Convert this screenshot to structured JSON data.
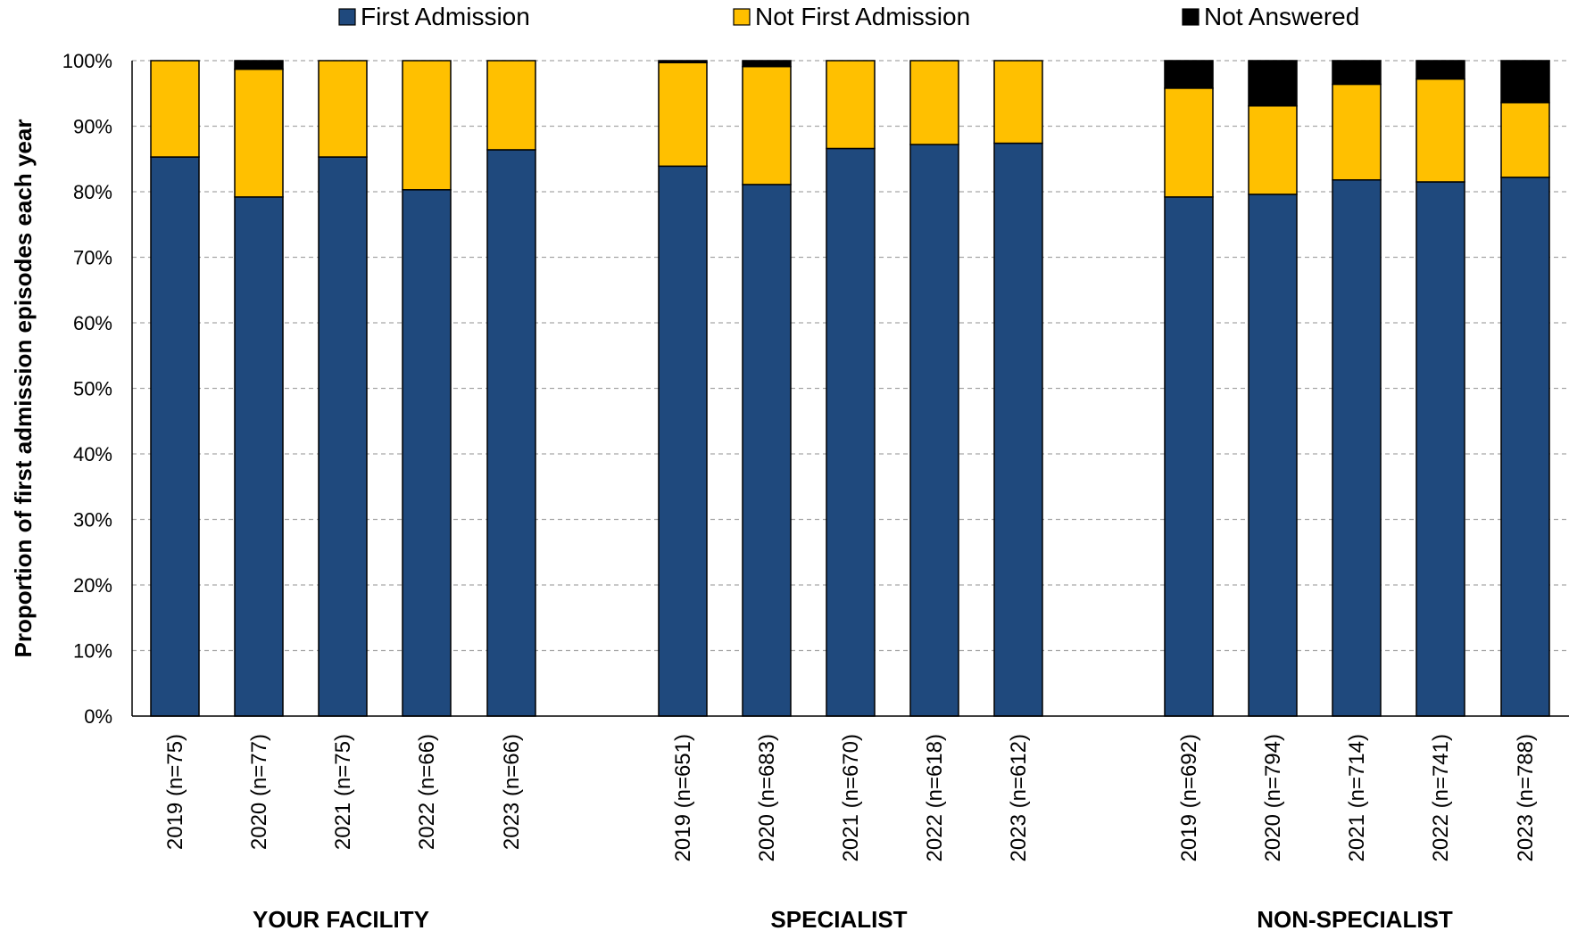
{
  "chart_data": {
    "type": "bar",
    "stacked": true,
    "title": "",
    "xlabel": "",
    "ylabel": "Proportion of first admission episodes each year",
    "ylim": [
      0,
      100
    ],
    "y_ticks": [
      "0%",
      "10%",
      "20%",
      "30%",
      "40%",
      "50%",
      "60%",
      "70%",
      "80%",
      "90%",
      "100%"
    ],
    "grid": true,
    "legend_position": "top",
    "groups": [
      "YOUR FACILITY",
      "SPECIALIST",
      "NON-SPECIALIST"
    ],
    "categories": [
      "2019 (n=75)",
      "2020 (n=77)",
      "2021 (n=75)",
      "2022 (n=66)",
      "2023 (n=66)",
      "2019 (n=651)",
      "2020 (n=683)",
      "2021 (n=670)",
      "2022 (n=618)",
      "2023 (n=612)",
      "2019 (n=692)",
      "2020 (n=794)",
      "2021 (n=714)",
      "2022 (n=741)",
      "2023 (n=788)"
    ],
    "series": [
      {
        "name": "First Admission",
        "color": "#1f497d",
        "values": [
          85.3,
          79.2,
          85.3,
          80.3,
          86.4,
          83.9,
          81.1,
          86.6,
          87.2,
          87.4,
          79.2,
          79.6,
          81.8,
          81.5,
          82.2
        ]
      },
      {
        "name": "Not First Admission",
        "color": "#ffc000",
        "values": [
          14.7,
          19.5,
          14.7,
          19.7,
          13.6,
          15.8,
          18.0,
          13.4,
          12.8,
          12.6,
          16.6,
          13.5,
          14.6,
          15.7,
          11.4
        ]
      },
      {
        "name": "Not Answered",
        "color": "#000000",
        "values": [
          0.0,
          1.3,
          0.0,
          0.0,
          0.0,
          0.3,
          0.9,
          0.0,
          0.0,
          0.0,
          4.2,
          6.9,
          3.6,
          2.8,
          6.4
        ]
      }
    ]
  }
}
